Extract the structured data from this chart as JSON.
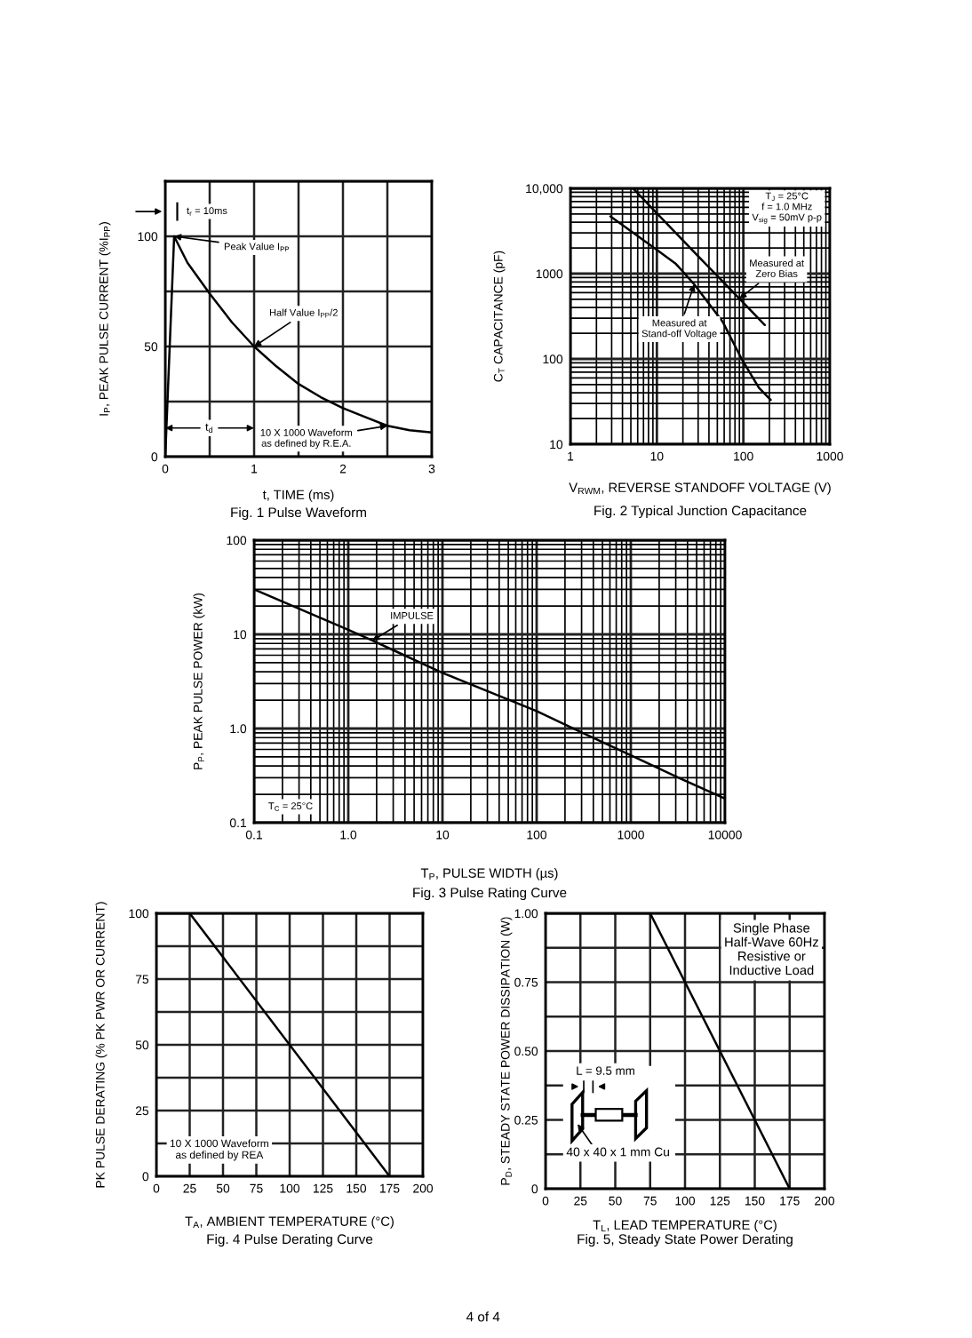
{
  "chart_data": [
    {
      "type": "line",
      "title": "Fig. 1 Pulse Waveform",
      "xlabel": "t, TIME (ms)",
      "ylabel": "I$_{P}$, PEAK PULSE CURRENT (%I$_{PP}$)",
      "x": [
        0,
        0.1,
        0.25,
        0.5,
        0.75,
        1,
        1.25,
        1.5,
        1.75,
        2,
        2.25,
        2.5,
        2.75,
        3
      ],
      "values": [
        0,
        100,
        88,
        74,
        61,
        50,
        41,
        33,
        27,
        22,
        18,
        14,
        12,
        11
      ],
      "color": "#000000",
      "xlim": [
        0,
        3
      ],
      "ylim": [
        0,
        125
      ],
      "xticks": [
        0,
        {
          "value": 0.5,
          "label": null
        },
        1,
        {
          "value": 1.5,
          "label": null
        },
        2,
        {
          "value": 2.5,
          "label": null
        },
        3
      ],
      "yticks": [
        0,
        {
          "value": 25,
          "label": null
        },
        50,
        {
          "value": 75,
          "label": null
        },
        100,
        {
          "value": 125,
          "label": null
        }
      ],
      "grid": true,
      "annotations": [
        "t$_{r}$ = 10ms",
        {
          "text": "Peak Value I$_{PP}$",
          "x": 0.1,
          "y": 100
        },
        {
          "text": "Half Value I$_{PP}$/2",
          "x": 1,
          "y": 50
        },
        "t$_{d}$",
        {
          "text": "10 X 1000 Waveform\nas defined by R.E.A.",
          "x": 2.5,
          "y": 14
        }
      ]
    },
    {
      "type": "line",
      "title": "Fig. 2 Typical Junction Capacitance",
      "xlabel": "V$_{RWM}$, REVERSE STANDOFF VOLTAGE (V)",
      "ylabel": "C$_{T}$ CAPACITANCE (pF)",
      "log": "xy",
      "xlim": [
        1,
        1000
      ],
      "ylim": [
        10,
        10000
      ],
      "xticks": [
        1,
        10,
        100,
        1000
      ],
      "yticks": [
        10,
        100,
        1000,
        {
          "value": 10000,
          "label": "10,000"
        }
      ],
      "grid": true,
      "series": [
        {
          "name": "Measured at\nZero Bias",
          "color": "#000000",
          "x": [
            5.3,
            10,
            30,
            90,
            177
          ],
          "values": [
            10000,
            5100,
            1600,
            510,
            250
          ]
        },
        {
          "name": "Measured at\nStand-off Voltage",
          "color": "#000000",
          "x": [
            2.9,
            10,
            16.6,
            27,
            58,
            94,
            151,
            207
          ],
          "values": [
            4700,
            1900,
            1300,
            750,
            270,
            103,
            46,
            33
          ]
        }
      ],
      "annotations": [
        "T$_{J}$ = 25°C\nf = 1.0 MHz\nV$_{sig}$ = 50mV p-p"
      ]
    },
    {
      "type": "line",
      "title": "Fig. 3 Pulse Rating Curve",
      "xlabel": "T$_{P}$, PULSE WIDTH (µs)",
      "ylabel": "P$_{P}$, PEAK PULSE POWER (kW)",
      "log": "xy",
      "xlim": [
        0.1,
        10000
      ],
      "ylim": [
        0.1,
        100
      ],
      "xticks": [
        0.1,
        {
          "value": 1,
          "label": "1.0"
        },
        10,
        100,
        1000,
        10000
      ],
      "yticks": [
        0.1,
        {
          "value": 1,
          "label": "1.0"
        },
        10,
        100
      ],
      "grid": true,
      "series": [
        {
          "name": "IMPULSE",
          "color": "#000000",
          "x": [
            0.1,
            0.3,
            1,
            1.8,
            3,
            10,
            30,
            100,
            300,
            1000,
            3000,
            10000
          ],
          "values": [
            30,
            18.7,
            11.2,
            8.6,
            6.8,
            3.9,
            2.5,
            1.53,
            0.91,
            0.52,
            0.31,
            0.18
          ]
        }
      ],
      "annotations": [
        "T$_{C}$ = 25°C"
      ]
    },
    {
      "type": "line",
      "title": "Fig. 4 Pulse Derating Curve",
      "xlabel": "T$_{A}$, AMBIENT TEMPERATURE (°C)",
      "ylabel": "PK PULSE DERATING (% PK PWR OR CURRENT)",
      "x": [
        0,
        25,
        175
      ],
      "values": [
        100,
        100,
        0
      ],
      "color": "#000000",
      "xlim": [
        0,
        200
      ],
      "ylim": [
        0,
        100
      ],
      "xticks": [
        0,
        25,
        50,
        75,
        100,
        125,
        150,
        175,
        200
      ],
      "yticks": [
        0,
        {
          "value": 12.5,
          "label": null
        },
        25,
        {
          "value": 37.5,
          "label": null
        },
        50,
        {
          "value": 62.5,
          "label": null
        },
        75,
        {
          "value": 87.5,
          "label": null
        },
        100
      ],
      "grid": true,
      "annotations": [
        "10 X 1000 Waveform\nas defined by REA"
      ]
    },
    {
      "type": "line",
      "title": "Fig. 5, Steady State Power Derating",
      "xlabel": "T$_{L}$, LEAD TEMPERATURE (°C)",
      "ylabel": "P$_{D}$, STEADY STATE POWER DISSIPATION (W)",
      "x": [
        0,
        75,
        175
      ],
      "values": [
        1,
        1,
        0
      ],
      "color": "#000000",
      "xlim": [
        0,
        200
      ],
      "ylim": [
        0,
        1
      ],
      "xticks": [
        0,
        25,
        50,
        75,
        100,
        125,
        150,
        175,
        200
      ],
      "yticks": [
        0,
        {
          "value": 0.125,
          "label": null
        },
        0.25,
        {
          "value": 0.375,
          "label": null
        },
        {
          "value": 0.5,
          "label": "0.50"
        },
        {
          "value": 0.625,
          "label": null
        },
        0.75,
        {
          "value": 0.875,
          "label": null
        },
        {
          "value": 1,
          "label": "1.00"
        }
      ],
      "grid": true,
      "annotations": [
        "Single Phase\nHalf-Wave 60Hz\nResistive or\nInductive Load",
        "L = 9.5 mm",
        "40 x 40 x 1 mm Cu",
        "4 of 4"
      ]
    }
  ]
}
